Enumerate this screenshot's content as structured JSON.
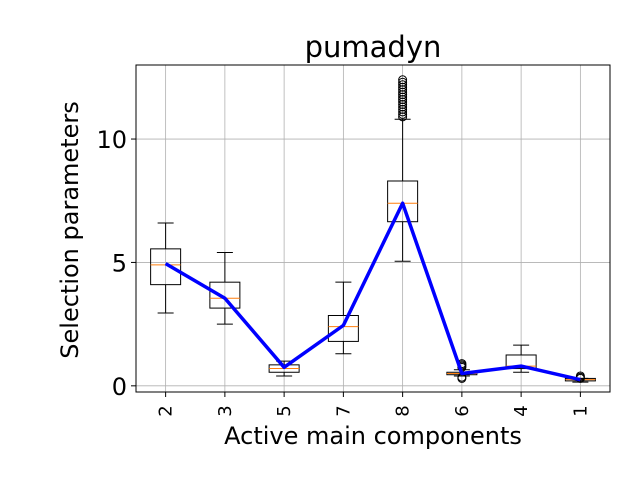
{
  "chart_data": {
    "type": "box",
    "title": "pumadyn",
    "xlabel": "Active main components",
    "ylabel": "Selection parameters",
    "categories": [
      "2",
      "3",
      "5",
      "7",
      "8",
      "6",
      "4",
      "1"
    ],
    "yticks": [
      0,
      5,
      10
    ],
    "ylim": [
      -0.25,
      13.0
    ],
    "grid": true,
    "boxes": [
      {
        "whisker_low": 2.95,
        "q1": 4.1,
        "median": 4.9,
        "q3": 5.55,
        "whisker_high": 6.6,
        "outliers": []
      },
      {
        "whisker_low": 2.5,
        "q1": 3.15,
        "median": 3.55,
        "q3": 4.2,
        "whisker_high": 5.4,
        "outliers": []
      },
      {
        "whisker_low": 0.4,
        "q1": 0.55,
        "median": 0.7,
        "q3": 0.85,
        "whisker_high": 1.0,
        "outliers": []
      },
      {
        "whisker_low": 1.3,
        "q1": 1.8,
        "median": 2.4,
        "q3": 2.85,
        "whisker_high": 4.2,
        "outliers": []
      },
      {
        "whisker_low": 5.05,
        "q1": 6.65,
        "median": 7.4,
        "q3": 8.3,
        "whisker_high": 10.8,
        "outliers": [
          10.9,
          11.0,
          11.1,
          11.2,
          11.3,
          11.4,
          11.5,
          11.6,
          11.7,
          11.8,
          11.9,
          12.0,
          12.1,
          12.2,
          12.3,
          12.4
        ]
      },
      {
        "whisker_low": 0.4,
        "q1": 0.45,
        "median": 0.5,
        "q3": 0.55,
        "whisker_high": 0.65,
        "outliers": [
          0.3,
          0.35,
          0.75,
          0.8,
          0.85,
          0.9
        ]
      },
      {
        "whisker_low": 0.55,
        "q1": 0.7,
        "median": 0.8,
        "q3": 1.25,
        "whisker_high": 1.65,
        "outliers": []
      },
      {
        "whisker_low": 0.15,
        "q1": 0.2,
        "median": 0.25,
        "q3": 0.3,
        "whisker_high": 0.3,
        "outliers": [
          0.3,
          0.35,
          0.4
        ]
      }
    ],
    "mean_line": {
      "values": [
        4.95,
        3.55,
        0.75,
        2.45,
        7.4,
        0.5,
        0.8,
        0.25
      ],
      "color": "#0000ff"
    },
    "colors": {
      "median": "#ff7f0e",
      "box": "#000000",
      "grid": "#b0b0b0",
      "line": "#0000ff"
    }
  }
}
